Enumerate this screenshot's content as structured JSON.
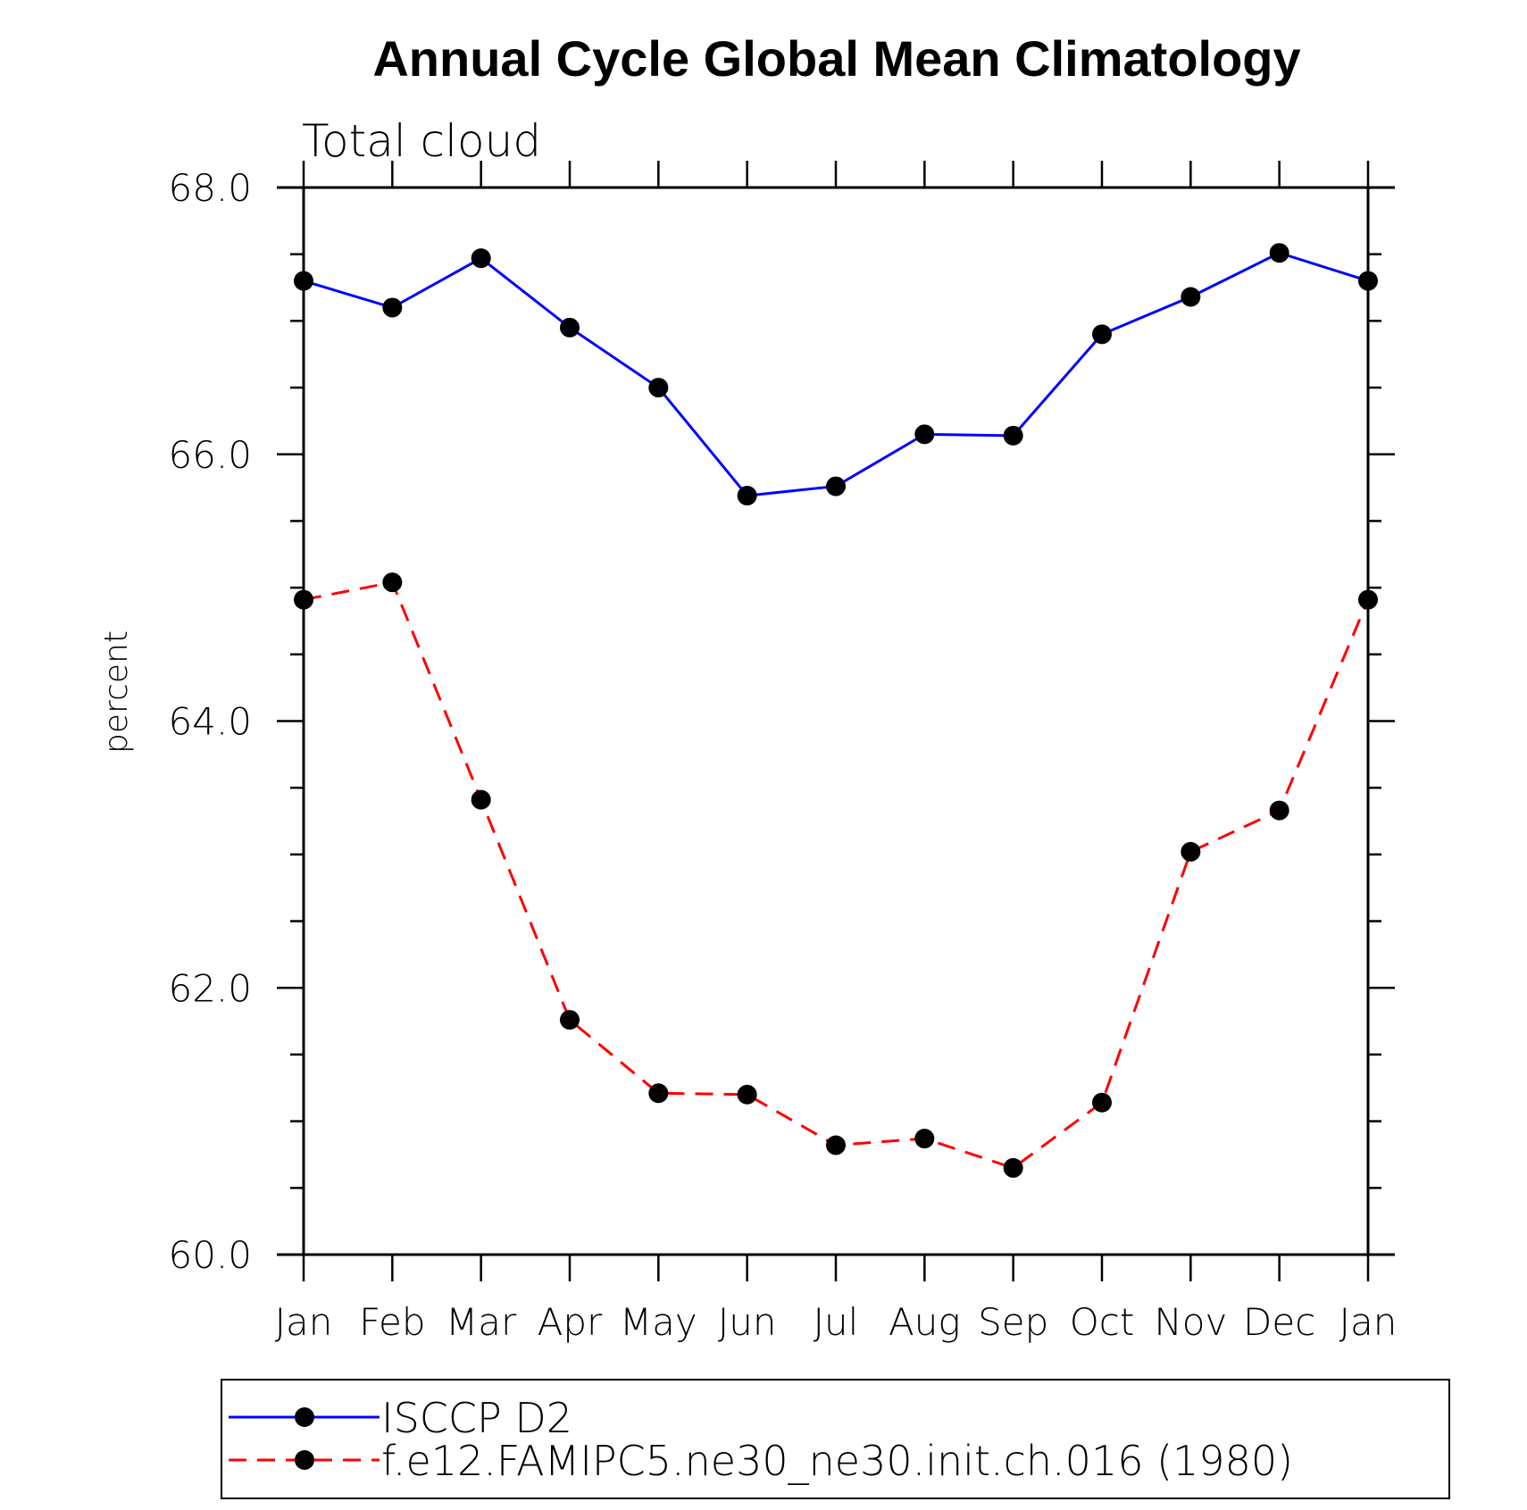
{
  "chart_data": {
    "type": "line",
    "title": "Annual Cycle Global Mean Climatology",
    "subtitle": "Total cloud",
    "xlabel": "",
    "ylabel": "percent",
    "categories": [
      "Jan",
      "Feb",
      "Mar",
      "Apr",
      "May",
      "Jun",
      "Jul",
      "Aug",
      "Sep",
      "Oct",
      "Nov",
      "Dec",
      "Jan"
    ],
    "ylim": [
      60.0,
      68.0
    ],
    "yticks": [
      "60.0",
      "62.0",
      "64.0",
      "66.0",
      "68.0"
    ],
    "grid": false,
    "legend_position": "bottom",
    "series": [
      {
        "name": "ISCCP D2",
        "color": "#0000ff",
        "line_style": "solid",
        "marker": "filled-circle",
        "values": [
          67.3,
          67.1,
          67.47,
          66.95,
          66.5,
          65.69,
          65.76,
          66.15,
          66.14,
          66.9,
          67.18,
          67.51,
          67.3
        ]
      },
      {
        "name": "f.e12.FAMIPC5.ne30_ne30.init.ch.016 (1980)",
        "color": "#ff0000",
        "line_style": "dashed",
        "marker": "filled-circle",
        "values": [
          64.91,
          65.04,
          63.41,
          61.76,
          61.21,
          61.2,
          60.82,
          60.87,
          60.65,
          61.14,
          63.02,
          63.33,
          64.91
        ]
      }
    ]
  }
}
